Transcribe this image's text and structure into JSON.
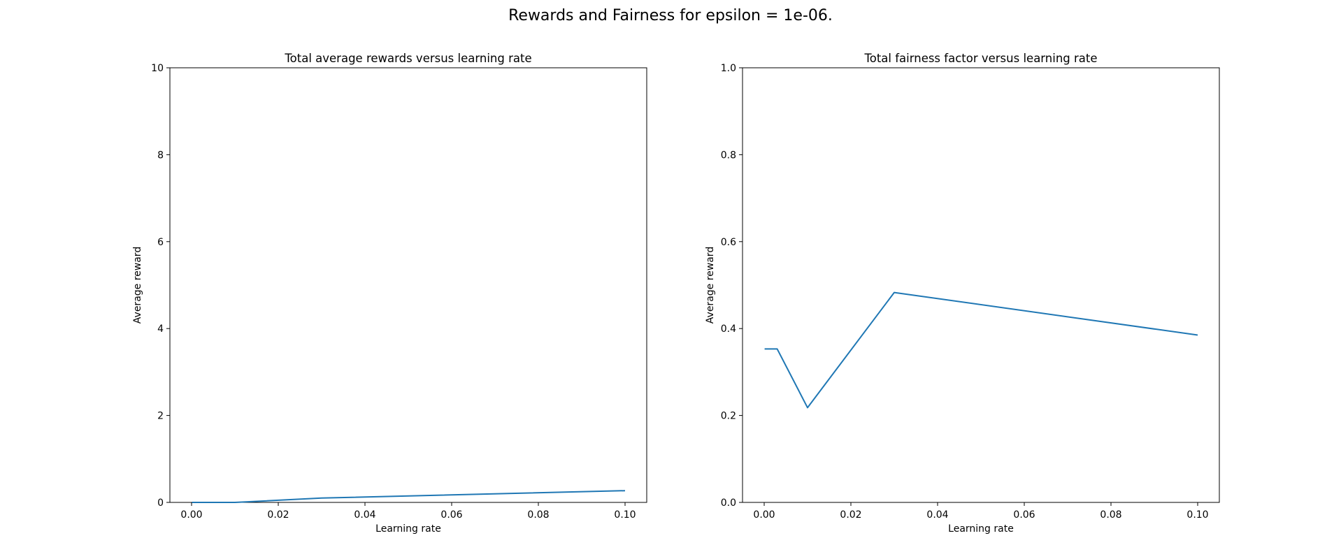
{
  "figure": {
    "suptitle": "Rewards and Fairness for epsilon = 1e-06."
  },
  "chart_data": [
    {
      "type": "line",
      "title": "Total average rewards versus learning rate",
      "xlabel": "Learning rate",
      "ylabel": "Average reward",
      "xlim": [
        -0.005,
        0.105
      ],
      "ylim": [
        0,
        10
      ],
      "xticks": [
        "0.00",
        "0.02",
        "0.04",
        "0.06",
        "0.08",
        "0.10"
      ],
      "yticks": [
        "0",
        "2",
        "4",
        "6",
        "8",
        "10"
      ],
      "grid": false,
      "color": "#1f77b4",
      "series": [
        {
          "x": [
            0.0001,
            0.001,
            0.003,
            0.01,
            0.03,
            0.1
          ],
          "y": [
            0.0,
            0.0,
            0.0,
            0.0,
            0.1,
            0.27
          ]
        }
      ]
    },
    {
      "type": "line",
      "title": "Total fairness factor versus learning rate",
      "xlabel": "Learning rate",
      "ylabel": "Average reward",
      "xlim": [
        -0.005,
        0.105
      ],
      "ylim": [
        0,
        1
      ],
      "xticks": [
        "0.00",
        "0.02",
        "0.04",
        "0.06",
        "0.08",
        "0.10"
      ],
      "yticks": [
        "0.0",
        "0.2",
        "0.4",
        "0.6",
        "0.8",
        "1.0"
      ],
      "grid": false,
      "color": "#1f77b4",
      "series": [
        {
          "x": [
            0.0001,
            0.001,
            0.003,
            0.01,
            0.03,
            0.1
          ],
          "y": [
            0.353,
            0.353,
            0.353,
            0.218,
            0.483,
            0.385
          ]
        }
      ]
    }
  ]
}
